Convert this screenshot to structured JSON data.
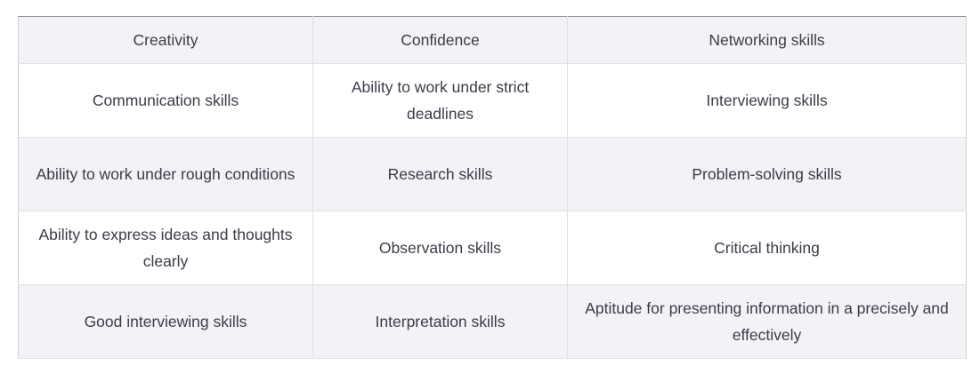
{
  "table": {
    "rows": [
      [
        "Creativity",
        "Confidence",
        "Networking skills"
      ],
      [
        "Communication skills",
        "Ability to work under strict deadlines",
        "Interviewing skills"
      ],
      [
        "Ability to work under rough conditions",
        "Research skills",
        "Problem-solving skills"
      ],
      [
        "Ability to express ideas and thoughts clearly",
        "Observation skills",
        "Critical thinking"
      ],
      [
        "Good interviewing skills",
        "Interpretation skills",
        "Aptitude for presenting information in a precisely and effectively"
      ]
    ]
  }
}
